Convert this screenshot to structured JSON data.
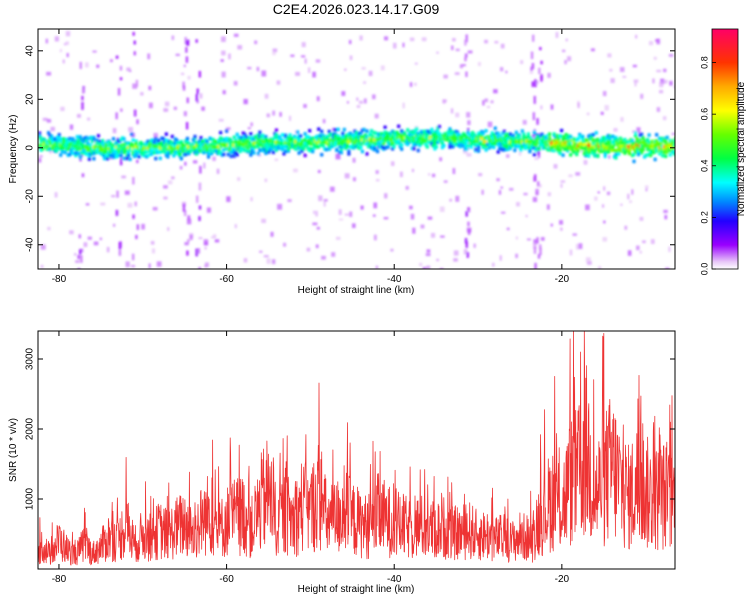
{
  "figure": {
    "title": "C2E4.2026.023.14.17.G09"
  },
  "chart_data": [
    {
      "type": "heatmap",
      "xlabel": "Height of straight line (km)",
      "ylabel": "Frequency (Hz)",
      "xlim": [
        -82.5,
        -6.5
      ],
      "ylim": [
        -50,
        49
      ],
      "xticks": [
        -80,
        -60,
        -40,
        -20
      ],
      "xtick_labels": [
        "-80",
        "-60",
        "-40",
        "-20"
      ],
      "yticks": [
        -40,
        -20,
        0,
        20,
        40
      ],
      "ytick_labels": [
        "-40",
        "-20",
        "0",
        "20",
        "40"
      ],
      "grid": false,
      "band_center_hz": [
        [
          -82,
          1.5
        ],
        [
          -78,
          0.5
        ],
        [
          -74,
          -0.5
        ],
        [
          -70,
          0
        ],
        [
          -66,
          0
        ],
        [
          -62,
          0.5
        ],
        [
          -58,
          1.5
        ],
        [
          -54,
          2
        ],
        [
          -50,
          2
        ],
        [
          -46,
          2.5
        ],
        [
          -42,
          3
        ],
        [
          -38,
          4
        ],
        [
          -34,
          4
        ],
        [
          -30,
          3
        ],
        [
          -26,
          2.5
        ],
        [
          -22,
          2
        ],
        [
          -18,
          1
        ],
        [
          -14,
          0.5
        ],
        [
          -10,
          0.5
        ],
        [
          -7,
          0.5
        ]
      ],
      "band_halfwidth_hz": 6,
      "colorbar": {
        "label": "Normalized spectral amplitude",
        "range": [
          0,
          0.93
        ],
        "ticks": [
          0.0,
          0.2,
          0.4,
          0.6,
          0.8
        ],
        "tick_labels": [
          "0.0",
          "0.2",
          "0.4",
          "0.6",
          "0.8"
        ],
        "colormap": [
          "#ffffff",
          "#e8c8f8",
          "#9900ff",
          "#2200ff",
          "#0088ff",
          "#00ffff",
          "#00ff44",
          "#66ff00",
          "#ffff00",
          "#ffaa00",
          "#ff3300",
          "#ff0066"
        ]
      }
    },
    {
      "type": "line",
      "xlabel": "Height of straight line (km)",
      "ylabel": "SNR (10 * v/v)",
      "xlim": [
        -82.5,
        -6.5
      ],
      "ylim": [
        0,
        3400
      ],
      "xticks": [
        -80,
        -60,
        -40,
        -20
      ],
      "xtick_labels": [
        "-80",
        "-60",
        "-40",
        "-20"
      ],
      "yticks": [
        1000,
        2000,
        3000
      ],
      "ytick_labels": [
        "1000",
        "2000",
        "3000"
      ],
      "grid": false,
      "series": [
        {
          "color": "#ee3333",
          "x": [
            -82.5,
            -82,
            -81,
            -80,
            -79,
            -78,
            -77,
            -76,
            -75,
            -74,
            -73,
            -72,
            -71,
            -70,
            -69,
            -68,
            -67,
            -66,
            -65,
            -64,
            -63,
            -62,
            -61,
            -60,
            -59,
            -58,
            -57,
            -56,
            -55,
            -54,
            -53,
            -52,
            -51,
            -50,
            -49,
            -48,
            -47,
            -46,
            -45,
            -44,
            -43,
            -42,
            -41,
            -40,
            -39,
            -38,
            -37,
            -36,
            -35,
            -34,
            -33,
            -32,
            -31,
            -30,
            -29,
            -28,
            -27,
            -26,
            -25,
            -24,
            -23.5,
            -23,
            -22,
            -21,
            -20,
            -19,
            -18,
            -17,
            -16,
            -15,
            -14,
            -13,
            -12,
            -11,
            -10,
            -9,
            -8,
            -7,
            -6.5
          ],
          "y": [
            380,
            520,
            300,
            640,
            420,
            300,
            560,
            340,
            480,
            720,
            600,
            980,
            520,
            760,
            680,
            860,
            740,
            900,
            1000,
            760,
            1050,
            1250,
            820,
            1050,
            1150,
            1200,
            900,
            1400,
            1700,
            1000,
            1250,
            1050,
            1400,
            1250,
            1650,
            1050,
            1100,
            1300,
            1100,
            1000,
            900,
            1200,
            1100,
            980,
            950,
            850,
            950,
            880,
            850,
            920,
            780,
            800,
            850,
            720,
            760,
            650,
            700,
            600,
            720,
            680,
            600,
            1000,
            1300,
            1600,
            1400,
            1900,
            2050,
            2600,
            1600,
            1950,
            2250,
            1850,
            1550,
            1850,
            1700,
            1500,
            1650,
            1450,
            1550
          ]
        }
      ]
    }
  ]
}
